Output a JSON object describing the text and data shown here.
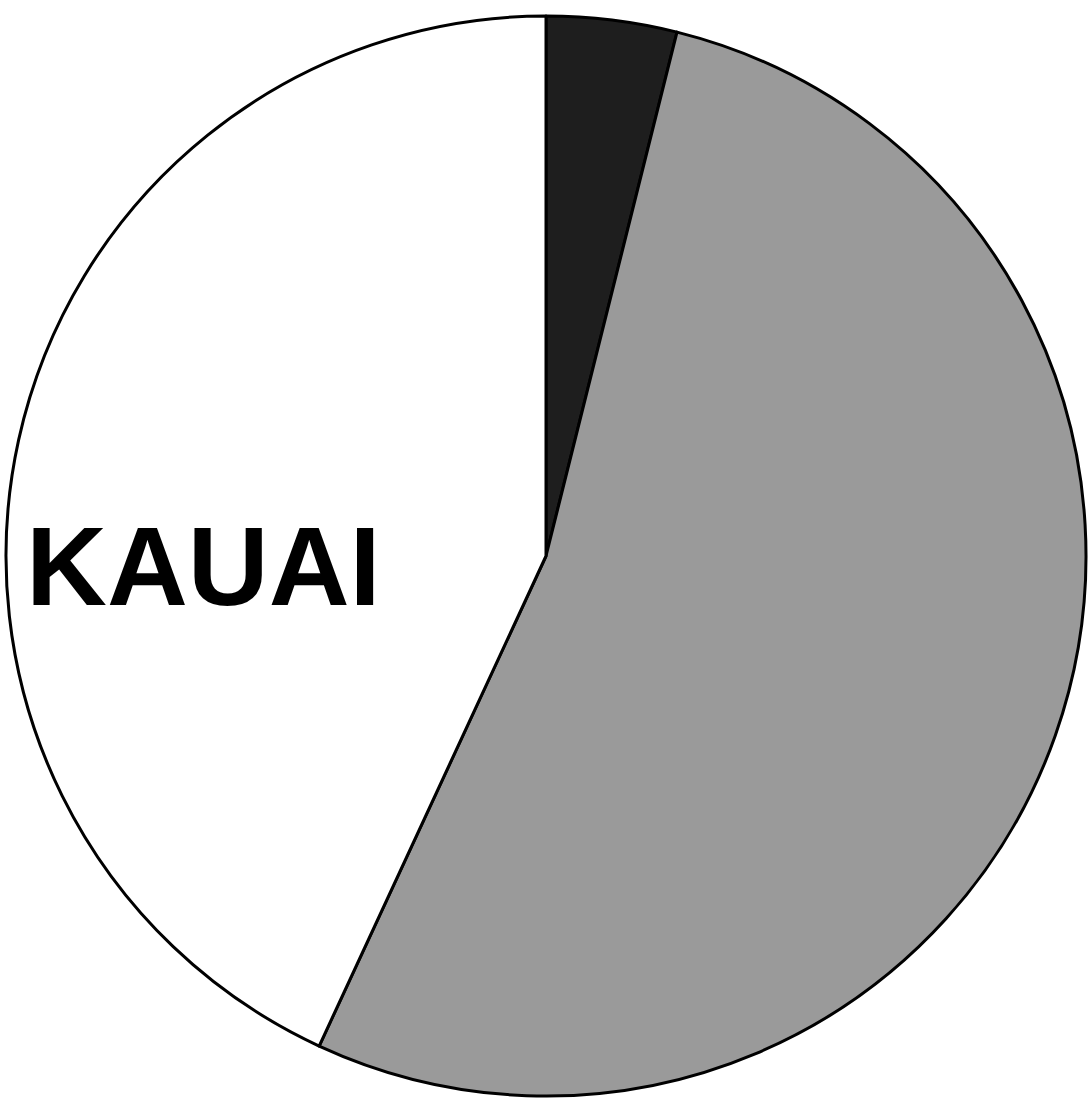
{
  "chart_data": {
    "type": "pie",
    "title": "KAUAI",
    "categories": [
      null,
      null,
      null
    ],
    "values": [
      3.9,
      53.0,
      43.1
    ],
    "colors": [
      "#1e1e1e",
      "#9a9a9a",
      "#ffffff"
    ]
  }
}
